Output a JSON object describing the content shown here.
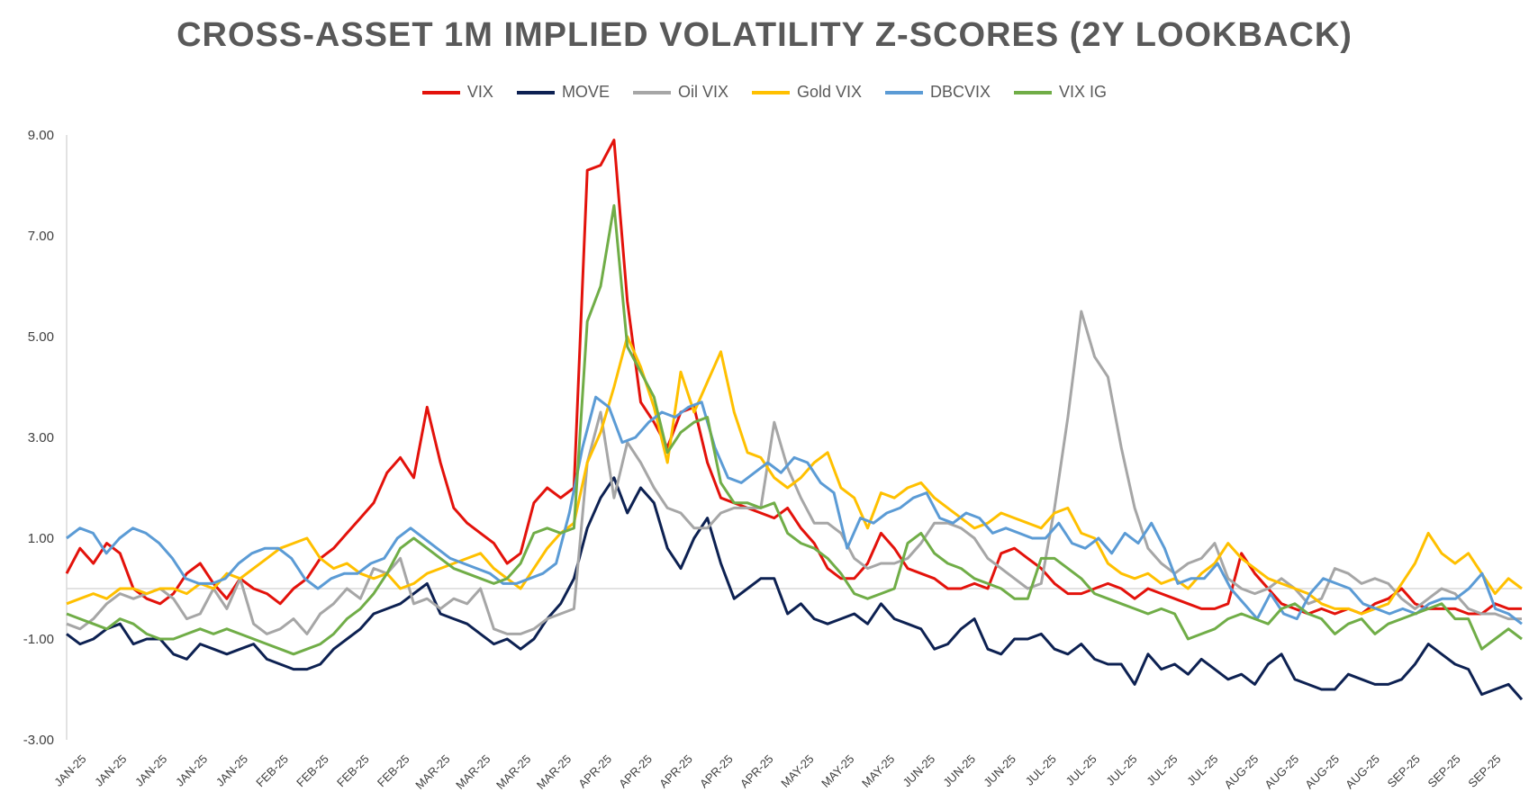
{
  "chart_data": {
    "type": "line",
    "title": "CROSS-ASSET 1M IMPLIED VOLATILITY Z-SCORES (2Y LOOKBACK)",
    "xlabel": "",
    "ylabel": "",
    "ylim": [
      -3,
      9
    ],
    "yticks": [
      "9.00",
      "7.00",
      "5.00",
      "3.00",
      "1.00",
      "-1.00",
      "-3.00"
    ],
    "ytick_values": [
      9,
      7,
      5,
      3,
      1,
      -1,
      -3
    ],
    "xtick_labels": [
      "JAN-25",
      "JAN-25",
      "JAN-25",
      "JAN-25",
      "JAN-25",
      "FEB-25",
      "FEB-25",
      "FEB-25",
      "FEB-25",
      "MAR-25",
      "MAR-25",
      "MAR-25",
      "MAR-25",
      "APR-25",
      "APR-25",
      "APR-25",
      "APR-25",
      "APR-25",
      "MAY-25",
      "MAY-25",
      "MAY-25",
      "JUN-25",
      "JUN-25",
      "JUN-25",
      "JUL-25",
      "JUL-25",
      "JUL-25",
      "JUL-25",
      "JUL-25",
      "AUG-25",
      "AUG-25",
      "AUG-25",
      "AUG-25",
      "SEP-25",
      "SEP-25",
      "SEP-25"
    ],
    "grid": false,
    "legend_position": "top",
    "series": [
      {
        "name": "VIX",
        "color": "#E3120B",
        "values": [
          0.3,
          0.8,
          0.5,
          0.9,
          0.7,
          0.0,
          -0.2,
          -0.3,
          -0.1,
          0.3,
          0.5,
          0.1,
          -0.2,
          0.2,
          0.0,
          -0.1,
          -0.3,
          0.0,
          0.2,
          0.6,
          0.8,
          1.1,
          1.4,
          1.7,
          2.3,
          2.6,
          2.2,
          3.6,
          2.5,
          1.6,
          1.3,
          1.1,
          0.9,
          0.5,
          0.7,
          1.7,
          2.0,
          1.8,
          2.0,
          8.3,
          8.4,
          8.9,
          5.7,
          3.7,
          3.3,
          2.8,
          3.5,
          3.6,
          2.5,
          1.8,
          1.7,
          1.6,
          1.5,
          1.4,
          1.6,
          1.2,
          0.9,
          0.4,
          0.2,
          0.2,
          0.5,
          1.1,
          0.8,
          0.4,
          0.3,
          0.2,
          0.0,
          0.0,
          0.1,
          0.0,
          0.7,
          0.8,
          0.6,
          0.4,
          0.1,
          -0.1,
          -0.1,
          0.0,
          0.1,
          0.0,
          -0.2,
          0.0,
          -0.1,
          -0.2,
          -0.3,
          -0.4,
          -0.4,
          -0.3,
          0.7,
          0.3,
          0.0,
          -0.3,
          -0.4,
          -0.5,
          -0.4,
          -0.5,
          -0.4,
          -0.5,
          -0.3,
          -0.2,
          0.0,
          -0.3,
          -0.4,
          -0.4,
          -0.4,
          -0.5,
          -0.5,
          -0.3,
          -0.4,
          -0.4
        ]
      },
      {
        "name": "MOVE",
        "color": "#0D2152",
        "values": [
          -0.9,
          -1.1,
          -1.0,
          -0.8,
          -0.7,
          -1.1,
          -1.0,
          -1.0,
          -1.3,
          -1.4,
          -1.1,
          -1.2,
          -1.3,
          -1.2,
          -1.1,
          -1.4,
          -1.5,
          -1.6,
          -1.6,
          -1.5,
          -1.2,
          -1.0,
          -0.8,
          -0.5,
          -0.4,
          -0.3,
          -0.1,
          0.1,
          -0.5,
          -0.6,
          -0.7,
          -0.9,
          -1.1,
          -1.0,
          -1.2,
          -1.0,
          -0.6,
          -0.3,
          0.2,
          1.2,
          1.8,
          2.2,
          1.5,
          2.0,
          1.7,
          0.8,
          0.4,
          1.0,
          1.4,
          0.5,
          -0.2,
          0.0,
          0.2,
          0.2,
          -0.5,
          -0.3,
          -0.6,
          -0.7,
          -0.6,
          -0.5,
          -0.7,
          -0.3,
          -0.6,
          -0.7,
          -0.8,
          -1.2,
          -1.1,
          -0.8,
          -0.6,
          -1.2,
          -1.3,
          -1.0,
          -1.0,
          -0.9,
          -1.2,
          -1.3,
          -1.1,
          -1.4,
          -1.5,
          -1.5,
          -1.9,
          -1.3,
          -1.6,
          -1.5,
          -1.7,
          -1.4,
          -1.6,
          -1.8,
          -1.7,
          -1.9,
          -1.5,
          -1.3,
          -1.8,
          -1.9,
          -2.0,
          -2.0,
          -1.7,
          -1.8,
          -1.9,
          -1.9,
          -1.8,
          -1.5,
          -1.1,
          -1.3,
          -1.5,
          -1.6,
          -2.1,
          -2.0,
          -1.9,
          -2.2
        ]
      },
      {
        "name": "Oil VIX",
        "color": "#A6A6A6",
        "values": [
          -0.7,
          -0.8,
          -0.6,
          -0.3,
          -0.1,
          -0.2,
          -0.1,
          0.0,
          -0.2,
          -0.6,
          -0.5,
          0.0,
          -0.4,
          0.2,
          -0.7,
          -0.9,
          -0.8,
          -0.6,
          -0.9,
          -0.5,
          -0.3,
          0.0,
          -0.2,
          0.4,
          0.3,
          0.6,
          -0.3,
          -0.2,
          -0.4,
          -0.2,
          -0.3,
          0.0,
          -0.8,
          -0.9,
          -0.9,
          -0.8,
          -0.6,
          -0.5,
          -0.4,
          2.5,
          3.5,
          1.8,
          2.9,
          2.5,
          2.0,
          1.6,
          1.5,
          1.2,
          1.2,
          1.5,
          1.6,
          1.6,
          1.6,
          3.3,
          2.4,
          1.8,
          1.3,
          1.3,
          1.1,
          0.6,
          0.4,
          0.5,
          0.5,
          0.6,
          0.9,
          1.3,
          1.3,
          1.2,
          1.0,
          0.6,
          0.4,
          0.2,
          0.0,
          0.1,
          1.6,
          3.4,
          5.5,
          4.6,
          4.2,
          2.8,
          1.6,
          0.8,
          0.5,
          0.3,
          0.5,
          0.6,
          0.9,
          0.2,
          0.0,
          -0.1,
          0.0,
          0.2,
          0.0,
          -0.3,
          -0.2,
          0.4,
          0.3,
          0.1,
          0.2,
          0.1,
          -0.2,
          -0.4,
          -0.2,
          0.0,
          -0.1,
          -0.4,
          -0.5,
          -0.5,
          -0.6,
          -0.6
        ]
      },
      {
        "name": "Gold VIX",
        "color": "#FFC000",
        "values": [
          -0.3,
          -0.2,
          -0.1,
          -0.2,
          0.0,
          0.0,
          -0.1,
          0.0,
          0.0,
          -0.1,
          0.1,
          0.0,
          0.3,
          0.2,
          0.4,
          0.6,
          0.8,
          0.9,
          1.0,
          0.6,
          0.4,
          0.5,
          0.3,
          0.2,
          0.3,
          0.0,
          0.1,
          0.3,
          0.4,
          0.5,
          0.6,
          0.7,
          0.4,
          0.2,
          0.0,
          0.4,
          0.8,
          1.1,
          1.3,
          2.5,
          3.1,
          4.0,
          5.0,
          4.4,
          3.6,
          2.5,
          4.3,
          3.5,
          4.1,
          4.7,
          3.5,
          2.7,
          2.6,
          2.2,
          2.0,
          2.2,
          2.5,
          2.7,
          2.0,
          1.8,
          1.2,
          1.9,
          1.8,
          2.0,
          2.1,
          1.8,
          1.6,
          1.4,
          1.2,
          1.3,
          1.5,
          1.4,
          1.3,
          1.2,
          1.5,
          1.6,
          1.1,
          1.0,
          0.5,
          0.3,
          0.2,
          0.3,
          0.1,
          0.2,
          0.0,
          0.3,
          0.5,
          0.9,
          0.6,
          0.4,
          0.2,
          0.1,
          0.0,
          -0.1,
          -0.3,
          -0.4,
          -0.4,
          -0.5,
          -0.4,
          -0.3,
          0.1,
          0.5,
          1.1,
          0.7,
          0.5,
          0.7,
          0.3,
          -0.1,
          0.2,
          0.0
        ]
      },
      {
        "name": "DBCVIX",
        "color": "#5B9BD5",
        "values": [
          1.0,
          1.2,
          1.1,
          0.7,
          1.0,
          1.2,
          1.1,
          0.9,
          0.6,
          0.2,
          0.1,
          0.1,
          0.2,
          0.5,
          0.7,
          0.8,
          0.8,
          0.6,
          0.2,
          0.0,
          0.2,
          0.3,
          0.3,
          0.5,
          0.6,
          1.0,
          1.2,
          1.0,
          0.8,
          0.6,
          0.5,
          0.4,
          0.3,
          0.1,
          0.1,
          0.2,
          0.3,
          0.5,
          1.5,
          2.8,
          3.8,
          3.6,
          2.9,
          3.0,
          3.3,
          3.5,
          3.4,
          3.6,
          3.7,
          2.8,
          2.2,
          2.1,
          2.3,
          2.5,
          2.3,
          2.6,
          2.5,
          2.1,
          1.9,
          0.8,
          1.4,
          1.3,
          1.5,
          1.6,
          1.8,
          1.9,
          1.4,
          1.3,
          1.5,
          1.4,
          1.1,
          1.2,
          1.1,
          1.0,
          1.0,
          1.3,
          0.9,
          0.8,
          1.0,
          0.7,
          1.1,
          0.9,
          1.3,
          0.8,
          0.1,
          0.2,
          0.2,
          0.5,
          0.0,
          -0.3,
          -0.6,
          -0.1,
          -0.5,
          -0.6,
          -0.1,
          0.2,
          0.1,
          0.0,
          -0.3,
          -0.4,
          -0.5,
          -0.4,
          -0.5,
          -0.3,
          -0.2,
          -0.2,
          0.0,
          0.3,
          -0.4,
          -0.5,
          -0.7
        ]
      },
      {
        "name": "VIX IG",
        "color": "#70AD47",
        "values": [
          -0.5,
          -0.6,
          -0.7,
          -0.8,
          -0.6,
          -0.7,
          -0.9,
          -1.0,
          -1.0,
          -0.9,
          -0.8,
          -0.9,
          -0.8,
          -0.9,
          -1.0,
          -1.1,
          -1.2,
          -1.3,
          -1.2,
          -1.1,
          -0.9,
          -0.6,
          -0.4,
          -0.1,
          0.3,
          0.8,
          1.0,
          0.8,
          0.6,
          0.4,
          0.3,
          0.2,
          0.1,
          0.2,
          0.5,
          1.1,
          1.2,
          1.1,
          1.2,
          5.3,
          6.0,
          7.6,
          4.8,
          4.3,
          3.8,
          2.7,
          3.1,
          3.3,
          3.4,
          2.1,
          1.7,
          1.7,
          1.6,
          1.7,
          1.1,
          0.9,
          0.8,
          0.6,
          0.3,
          -0.1,
          -0.2,
          -0.1,
          0.0,
          0.9,
          1.1,
          0.7,
          0.5,
          0.4,
          0.2,
          0.1,
          0.0,
          -0.2,
          -0.2,
          0.6,
          0.6,
          0.4,
          0.2,
          -0.1,
          -0.2,
          -0.3,
          -0.4,
          -0.5,
          -0.4,
          -0.5,
          -1.0,
          -0.9,
          -0.8,
          -0.6,
          -0.5,
          -0.6,
          -0.7,
          -0.4,
          -0.3,
          -0.5,
          -0.6,
          -0.9,
          -0.7,
          -0.6,
          -0.9,
          -0.7,
          -0.6,
          -0.5,
          -0.4,
          -0.3,
          -0.6,
          -0.6,
          -1.2,
          -1.0,
          -0.8,
          -1.0
        ]
      }
    ]
  }
}
